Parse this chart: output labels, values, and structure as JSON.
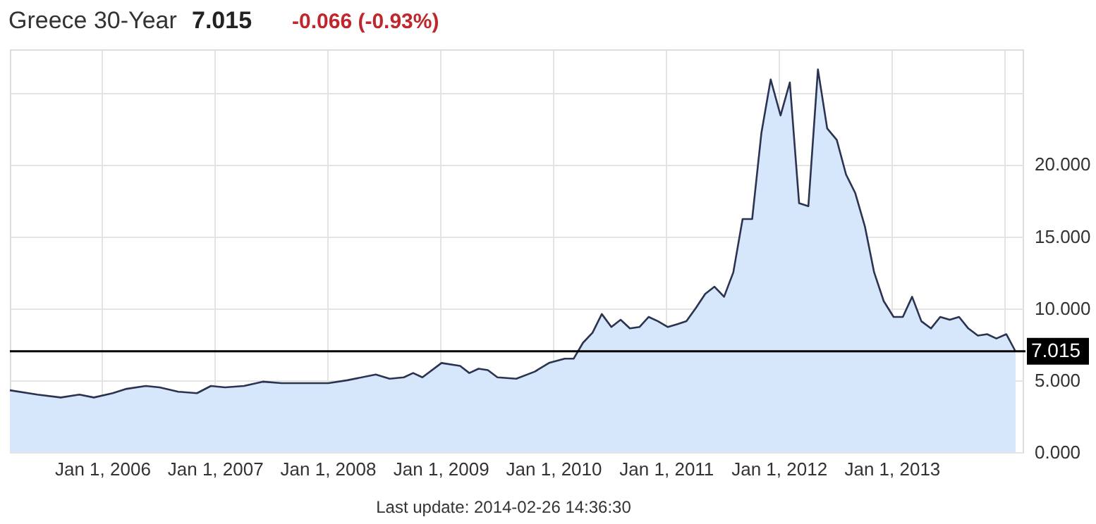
{
  "chart_data": {
    "type": "area",
    "title": "Greece 30-Year",
    "annotations": [
      "7.015",
      "-0.066 (-0.93%)",
      "Last update: 2014-02-26 14:36:30"
    ],
    "x": [
      "2005-03-08",
      "2005-06-05",
      "2005-08-20",
      "2005-10-19",
      "2005-12-05",
      "2006-02-04",
      "2006-03-21",
      "2006-05-22",
      "2006-07-06",
      "2006-09-05",
      "2006-11-04",
      "2006-12-19",
      "2007-02-03",
      "2007-04-05",
      "2007-06-05",
      "2007-08-05",
      "2007-10-04",
      "2008-01-04",
      "2008-03-05",
      "2008-06-05",
      "2008-07-20",
      "2008-09-04",
      "2008-10-04",
      "2008-11-03",
      "2009-01-04",
      "2009-03-05",
      "2009-04-04",
      "2009-05-04",
      "2009-06-03",
      "2009-07-04",
      "2009-09-03",
      "2009-11-02",
      "2009-12-18",
      "2010-02-07",
      "2010-03-08",
      "2010-04-07",
      "2010-05-08",
      "2010-06-07",
      "2010-07-08",
      "2010-08-07",
      "2010-09-06",
      "2010-10-07",
      "2010-11-06",
      "2010-12-06",
      "2011-01-07",
      "2011-02-07",
      "2011-03-08",
      "2011-04-07",
      "2011-05-08",
      "2011-06-07",
      "2011-07-08",
      "2011-08-07",
      "2011-09-06",
      "2011-10-07",
      "2011-11-06",
      "2011-12-06",
      "2012-01-07",
      "2012-02-06",
      "2012-03-07",
      "2012-04-06",
      "2012-05-07",
      "2012-06-06",
      "2012-07-07",
      "2012-08-06",
      "2012-09-05",
      "2012-10-06",
      "2012-11-05",
      "2012-12-06",
      "2013-01-07",
      "2013-02-06",
      "2013-03-08",
      "2013-04-07",
      "2013-05-08",
      "2013-06-07",
      "2013-07-08",
      "2013-08-07",
      "2013-09-06",
      "2013-10-07",
      "2013-11-06",
      "2013-12-06",
      "2014-01-07",
      "2014-02-06"
    ],
    "series": [
      {
        "color": "#2b3350",
        "values": [
          4.3,
          4.0,
          3.8,
          4.0,
          3.8,
          4.1,
          4.4,
          4.6,
          4.5,
          4.2,
          4.1,
          4.6,
          4.5,
          4.6,
          4.9,
          4.8,
          4.8,
          4.8,
          5.0,
          5.4,
          5.1,
          5.2,
          5.5,
          5.2,
          6.2,
          6.0,
          5.5,
          5.8,
          5.7,
          5.2,
          5.1,
          5.6,
          6.2,
          6.5,
          6.5,
          7.6,
          8.3,
          9.6,
          8.7,
          9.2,
          8.6,
          8.7,
          9.4,
          9.1,
          8.7,
          8.9,
          9.1,
          10.0,
          11.0,
          11.5,
          10.8,
          12.5,
          16.2,
          16.2,
          22.2,
          25.9,
          23.4,
          25.7,
          17.3,
          17.1,
          26.6,
          22.5,
          21.7,
          19.3,
          18.0,
          15.7,
          12.5,
          10.5,
          9.4,
          9.4,
          10.8,
          9.1,
          8.6,
          9.4,
          9.2,
          9.4,
          8.6,
          8.1,
          8.2,
          7.9,
          8.2,
          7.0
        ]
      }
    ],
    "xlim": [
      "2005-03-08",
      "2014-03-01"
    ],
    "xticks": [
      {
        "value": "2006-01-01",
        "label": "Jan 1, 2006"
      },
      {
        "value": "2007-01-01",
        "label": "Jan 1, 2007"
      },
      {
        "value": "2008-01-01",
        "label": "Jan 1, 2008"
      },
      {
        "value": "2009-01-01",
        "label": "Jan 1, 2009"
      },
      {
        "value": "2010-01-01",
        "label": "Jan 1, 2010"
      },
      {
        "value": "2011-01-01",
        "label": "Jan 1, 2011"
      },
      {
        "value": "2012-01-01",
        "label": "Jan 1, 2012"
      },
      {
        "value": "2013-01-01",
        "label": "Jan 1, 2013"
      },
      {
        "value": "2014-01-01",
        "label": null
      }
    ],
    "ylim": [
      0,
      28
    ],
    "yticks": [
      {
        "value": 0,
        "label": "0.000"
      },
      {
        "value": 5,
        "label": "5.000"
      },
      {
        "value": 10,
        "label": "10.000"
      },
      {
        "value": 15,
        "label": "15.000"
      },
      {
        "value": 20,
        "label": "20.000"
      },
      {
        "value": 25,
        "label": null
      }
    ],
    "ref_lines": [
      {
        "axis": "y",
        "value": 7.015,
        "label": "7.015",
        "color": "#000000"
      }
    ],
    "grid": true
  }
}
